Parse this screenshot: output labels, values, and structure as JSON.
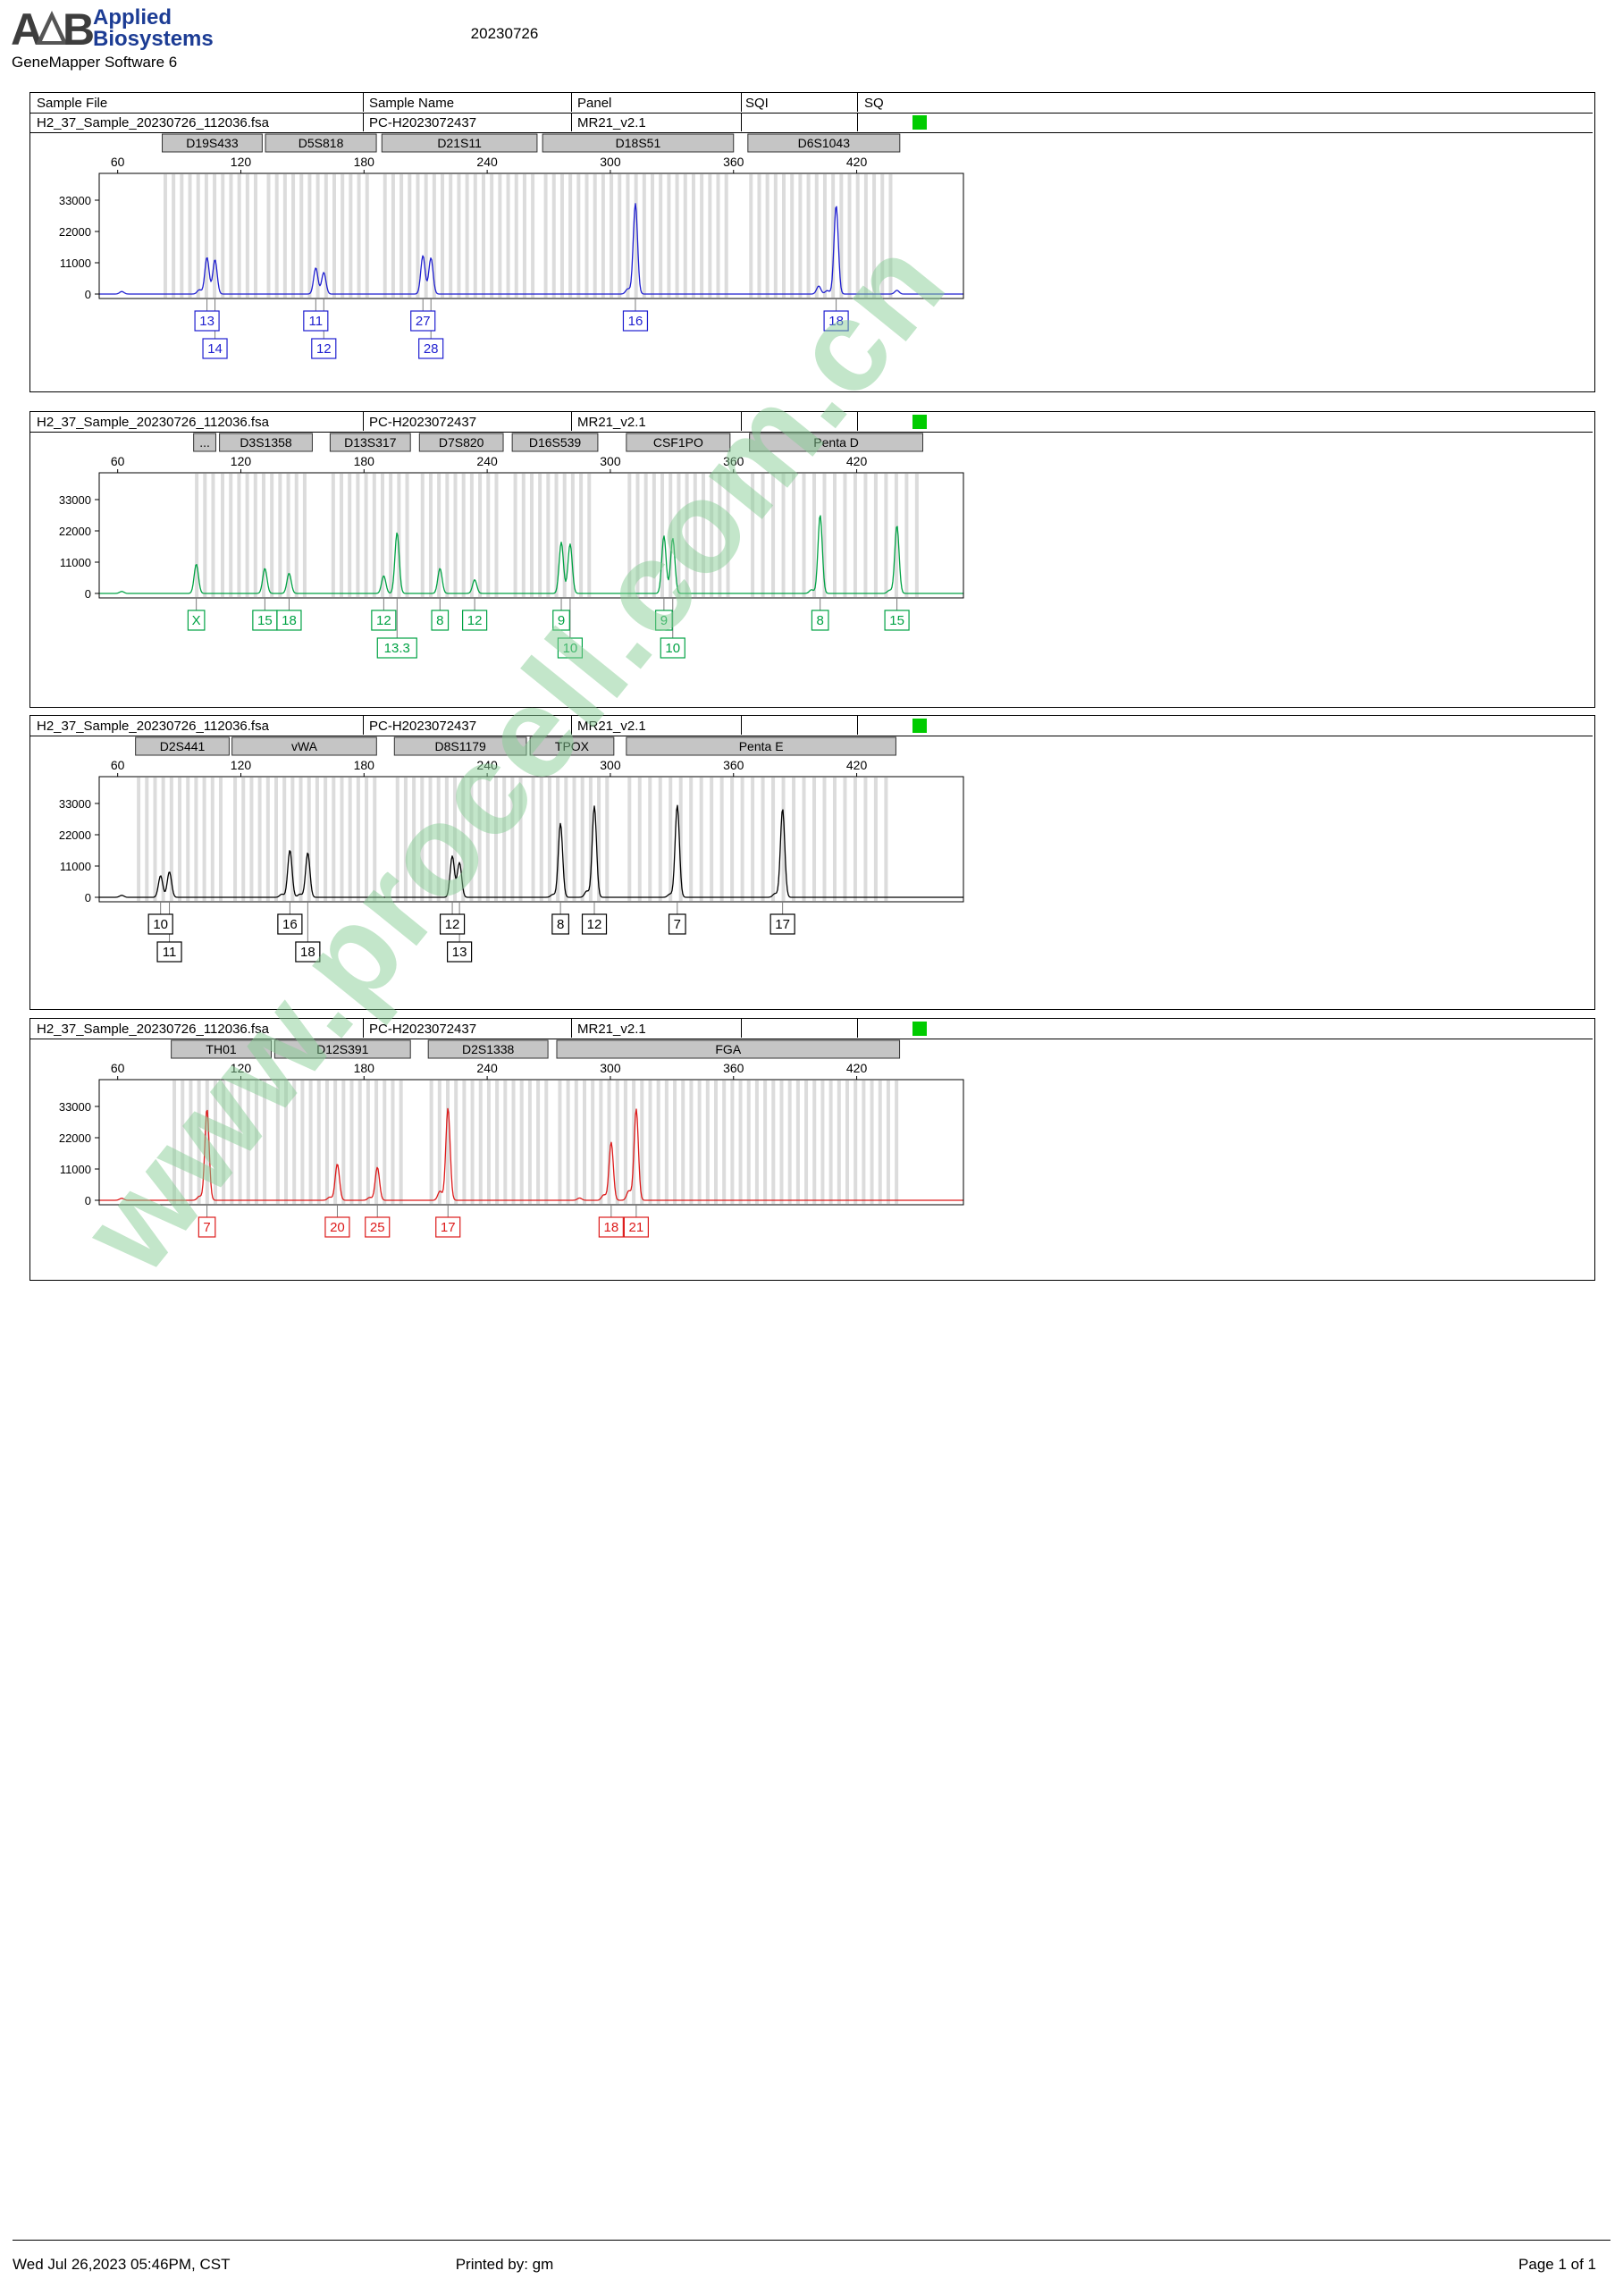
{
  "header": {
    "logo_a": "A",
    "logo_b": "B",
    "brand_line1": "Applied",
    "brand_line2": "Biosystems",
    "software": "GeneMapper Software 6",
    "date_title": "20230726"
  },
  "watermark": "www.procell.com.cn",
  "footer": {
    "left": "Wed Jul 26,2023 05:46PM, CST",
    "center": "Printed by: gm",
    "right": "Page 1 of 1"
  },
  "columns": [
    "Sample File",
    "Sample Name",
    "Panel",
    "SQI",
    "SQ"
  ],
  "axis": {
    "x_ticks": [
      60,
      120,
      180,
      240,
      300,
      360,
      420
    ],
    "y_ticks": [
      0,
      11000,
      22000,
      33000
    ],
    "bp_min": 51,
    "bp_max": 472
  },
  "chart_data": [
    {
      "type": "line",
      "name": "blue-dye-electropherogram",
      "dye_color": "#1f1fd0",
      "sample_file": "H2_37_Sample_20230726_112036.fsa",
      "sample_name": "PC-H2023072437",
      "panel": "MR21_v2.1",
      "sqi": "",
      "sq_status_color": "#00cc00",
      "markers": [
        {
          "label": "D19S433",
          "bp": [
            81.7,
            130.4
          ],
          "unit": 4
        },
        {
          "label": "D5S818",
          "bp": [
            132,
            186
          ],
          "unit": 4
        },
        {
          "label": "D21S11",
          "bp": [
            188.7,
            264.3
          ],
          "unit": 4
        },
        {
          "label": "D18S51",
          "bp": [
            267,
            360
          ],
          "unit": 4
        },
        {
          "label": "D6S1043",
          "bp": [
            367,
            441
          ],
          "unit": 4
        }
      ],
      "peaks": [
        [
          62,
          900
        ],
        [
          99.8,
          1500
        ],
        [
          103.5,
          12900
        ],
        [
          107.4,
          12100
        ],
        [
          156.5,
          9200
        ],
        [
          160.4,
          7600
        ],
        [
          208.7,
          13500
        ],
        [
          212.6,
          12700
        ],
        [
          308.5,
          1800
        ],
        [
          312.2,
          31800
        ],
        [
          401.5,
          2800
        ],
        [
          405.7,
          1200
        ],
        [
          410,
          31200
        ],
        [
          439.6,
          1300
        ]
      ],
      "alleles": [
        {
          "bp": 103.5,
          "row": 1,
          "label": "13"
        },
        {
          "bp": 107.4,
          "row": 2,
          "label": "14"
        },
        {
          "bp": 156.5,
          "row": 1,
          "label": "11"
        },
        {
          "bp": 160.4,
          "row": 2,
          "label": "12"
        },
        {
          "bp": 208.7,
          "row": 1,
          "label": "27"
        },
        {
          "bp": 212.6,
          "row": 2,
          "label": "28"
        },
        {
          "bp": 312.2,
          "row": 1,
          "label": "16"
        },
        {
          "bp": 410,
          "row": 1,
          "label": "18"
        }
      ]
    },
    {
      "type": "line",
      "name": "green-dye-electropherogram",
      "dye_color": "#00a244",
      "sample_file": "H2_37_Sample_20230726_112036.fsa",
      "sample_name": "PC-H2023072437",
      "panel": "MR21_v2.1",
      "sqi": "",
      "sq_status_color": "#00cc00",
      "markers": [
        {
          "label": "...",
          "bp": [
            97,
            107.8
          ],
          "unit": 4
        },
        {
          "label": "D3S1358",
          "bp": [
            109.6,
            154.8
          ],
          "unit": 4
        },
        {
          "label": "D13S317",
          "bp": [
            163.5,
            202.6
          ],
          "unit": 4
        },
        {
          "label": "D7S820",
          "bp": [
            207,
            247.8
          ],
          "unit": 4
        },
        {
          "label": "D16S539",
          "bp": [
            252.2,
            293.9
          ],
          "unit": 4
        },
        {
          "label": "CSF1PO",
          "bp": [
            307.8,
            358.3
          ],
          "unit": 4
        },
        {
          "label": "Penta D",
          "bp": [
            367.8,
            452.2
          ],
          "unit": 5
        }
      ],
      "peaks": [
        [
          62,
          700
        ],
        [
          98.3,
          10300
        ],
        [
          131.7,
          8800
        ],
        [
          143.5,
          7100
        ],
        [
          189.6,
          6200
        ],
        [
          196.1,
          21400
        ],
        [
          217,
          8800
        ],
        [
          233.9,
          4800
        ],
        [
          276.1,
          18000
        ],
        [
          280.4,
          17400
        ],
        [
          326.1,
          20200
        ],
        [
          330.4,
          19400
        ],
        [
          398,
          1300
        ],
        [
          402.2,
          27600
        ],
        [
          436,
          1100
        ],
        [
          439.6,
          23900
        ]
      ],
      "alleles": [
        {
          "bp": 98.3,
          "row": 1,
          "label": "X"
        },
        {
          "bp": 131.7,
          "row": 1,
          "label": "15"
        },
        {
          "bp": 143.5,
          "row": 1,
          "label": "18"
        },
        {
          "bp": 189.6,
          "row": 1,
          "label": "12"
        },
        {
          "bp": 196.1,
          "row": 2,
          "label": "13.3"
        },
        {
          "bp": 217,
          "row": 1,
          "label": "8"
        },
        {
          "bp": 233.9,
          "row": 1,
          "label": "12"
        },
        {
          "bp": 276.1,
          "row": 1,
          "label": "9"
        },
        {
          "bp": 280.4,
          "row": 2,
          "label": "10"
        },
        {
          "bp": 326.1,
          "row": 1,
          "label": "9"
        },
        {
          "bp": 330.4,
          "row": 2,
          "label": "10"
        },
        {
          "bp": 402.2,
          "row": 1,
          "label": "8"
        },
        {
          "bp": 439.6,
          "row": 1,
          "label": "15"
        }
      ]
    },
    {
      "type": "line",
      "name": "black-dye-electropherogram",
      "dye_color": "#000000",
      "sample_file": "H2_37_Sample_20230726_112036.fsa",
      "sample_name": "PC-H2023072437",
      "panel": "MR21_v2.1",
      "sqi": "",
      "sq_status_color": "#00cc00",
      "markers": [
        {
          "label": "D2S441",
          "bp": [
            68.7,
            114.3
          ],
          "unit": 4
        },
        {
          "label": "vWA",
          "bp": [
            115.7,
            186.1
          ],
          "unit": 4
        },
        {
          "label": "D8S1179",
          "bp": [
            194.8,
            259.1
          ],
          "unit": 4
        },
        {
          "label": "TPOX",
          "bp": [
            260.9,
            301.7
          ],
          "unit": 4
        },
        {
          "label": "Penta E",
          "bp": [
            307.8,
            439.1
          ],
          "unit": 5
        }
      ],
      "peaks": [
        [
          62,
          700
        ],
        [
          80.9,
          7600
        ],
        [
          85.2,
          9000
        ],
        [
          140,
          1100
        ],
        [
          143.9,
          16600
        ],
        [
          148.8,
          1100
        ],
        [
          152.6,
          15700
        ],
        [
          223,
          14500
        ],
        [
          226.5,
          12200
        ],
        [
          272,
          1000
        ],
        [
          275.7,
          26000
        ],
        [
          288.5,
          2200
        ],
        [
          292.2,
          32100
        ],
        [
          329,
          1100
        ],
        [
          332.6,
          32400
        ],
        [
          380.2,
          1300
        ],
        [
          383.9,
          31100
        ]
      ],
      "alleles": [
        {
          "bp": 80.9,
          "row": 1,
          "label": "10"
        },
        {
          "bp": 85.2,
          "row": 2,
          "label": "11"
        },
        {
          "bp": 143.9,
          "row": 1,
          "label": "16"
        },
        {
          "bp": 152.6,
          "row": 2,
          "label": "18"
        },
        {
          "bp": 223,
          "row": 1,
          "label": "12"
        },
        {
          "bp": 226.5,
          "row": 2,
          "label": "13"
        },
        {
          "bp": 275.7,
          "row": 1,
          "label": "8"
        },
        {
          "bp": 292.2,
          "row": 1,
          "label": "12"
        },
        {
          "bp": 332.6,
          "row": 1,
          "label": "7"
        },
        {
          "bp": 383.9,
          "row": 1,
          "label": "17"
        }
      ]
    },
    {
      "type": "line",
      "name": "red-dye-electropherogram",
      "dye_color": "#dd1a1a",
      "sample_file": "H2_37_Sample_20230726_112036.fsa",
      "sample_name": "PC-H2023072437",
      "panel": "MR21_v2.1",
      "sqi": "",
      "sq_status_color": "#00cc00",
      "markers": [
        {
          "label": "TH01",
          "bp": [
            86.1,
            134.8
          ],
          "unit": 4
        },
        {
          "label": "D12S391",
          "bp": [
            136.5,
            202.6
          ],
          "unit": 4
        },
        {
          "label": "D2S1338",
          "bp": [
            211.3,
            269.6
          ],
          "unit": 4
        },
        {
          "label": "FGA",
          "bp": [
            273.9,
            440.9
          ],
          "unit": 4
        }
      ],
      "peaks": [
        [
          62,
          700
        ],
        [
          99.8,
          1400
        ],
        [
          103.5,
          32100
        ],
        [
          163.3,
          1100
        ],
        [
          167,
          12800
        ],
        [
          182.8,
          1000
        ],
        [
          186.5,
          11600
        ],
        [
          217,
          3200
        ],
        [
          220.9,
          32400
        ],
        [
          285,
          800
        ],
        [
          296.8,
          1900
        ],
        [
          300.4,
          20400
        ],
        [
          309,
          3300
        ],
        [
          312.6,
          32100
        ]
      ],
      "alleles": [
        {
          "bp": 103.5,
          "row": 1,
          "label": "7"
        },
        {
          "bp": 167,
          "row": 1,
          "label": "20"
        },
        {
          "bp": 186.5,
          "row": 1,
          "label": "25"
        },
        {
          "bp": 220.9,
          "row": 1,
          "label": "17"
        },
        {
          "bp": 300.4,
          "row": 1,
          "label": "18"
        },
        {
          "bp": 312.6,
          "row": 1,
          "label": "21"
        }
      ]
    }
  ]
}
